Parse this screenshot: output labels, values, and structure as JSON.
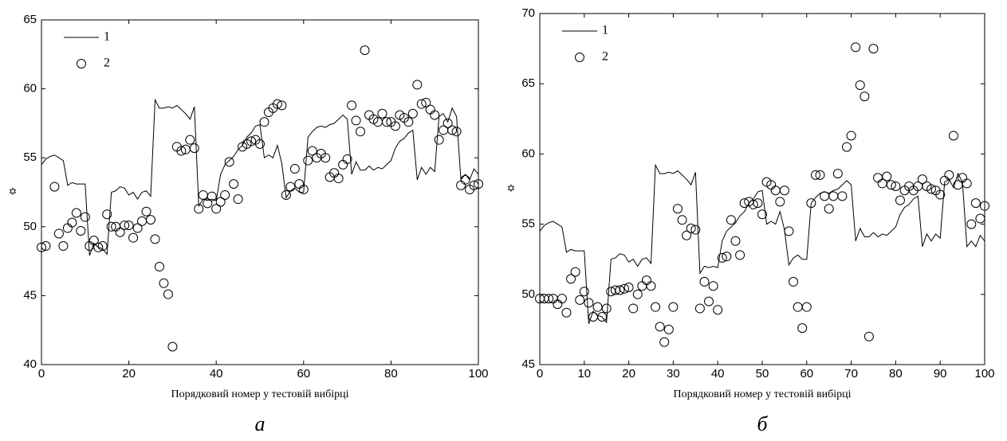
{
  "chart_data": [
    {
      "type": "line",
      "caption": "а",
      "xlabel": "Порядковий номер у тестовій вибірці",
      "ylabel": "✡",
      "legend": "upper left",
      "xlim": [
        0,
        100
      ],
      "ylim": [
        40,
        65
      ],
      "xticks": [
        0,
        20,
        40,
        60,
        80,
        100
      ],
      "yticks": [
        40,
        45,
        50,
        55,
        60,
        65
      ],
      "x": [
        0,
        1,
        2,
        3,
        4,
        5,
        6,
        7,
        8,
        9,
        10,
        11,
        12,
        13,
        14,
        15,
        16,
        17,
        18,
        19,
        20,
        21,
        22,
        23,
        24,
        25,
        26,
        27,
        28,
        29,
        30,
        31,
        32,
        33,
        34,
        35,
        36,
        37,
        38,
        39,
        40,
        41,
        42,
        43,
        44,
        45,
        46,
        47,
        48,
        49,
        50,
        51,
        52,
        53,
        54,
        55,
        56,
        57,
        58,
        59,
        60,
        61,
        62,
        63,
        64,
        65,
        66,
        67,
        68,
        69,
        70,
        71,
        72,
        73,
        74,
        75,
        76,
        77,
        78,
        79,
        80,
        81,
        82,
        83,
        84,
        85,
        86,
        87,
        88,
        89,
        90,
        91,
        92,
        93,
        94,
        95,
        96,
        97,
        98,
        99,
        100
      ],
      "series": [
        {
          "name": "1",
          "color": "#000000",
          "marker": "line",
          "values": [
            54.5,
            54.9,
            55.1,
            55.2,
            55.0,
            54.8,
            53.0,
            53.2,
            53.1,
            53.1,
            53.1,
            47.9,
            48.8,
            48.5,
            48.4,
            48.0,
            52.5,
            52.6,
            52.9,
            52.8,
            52.3,
            52.5,
            52.0,
            52.5,
            52.6,
            52.2,
            59.2,
            58.6,
            58.6,
            58.7,
            58.6,
            58.8,
            58.5,
            58.2,
            57.8,
            58.7,
            51.5,
            52.0,
            51.9,
            52.0,
            51.9,
            53.8,
            54.5,
            54.8,
            55.1,
            55.6,
            55.9,
            56.5,
            56.8,
            57.3,
            57.4,
            55.0,
            55.2,
            55.0,
            55.9,
            54.6,
            52.1,
            52.6,
            52.8,
            52.5,
            52.5,
            56.5,
            56.9,
            57.2,
            57.3,
            57.2,
            57.4,
            57.5,
            57.8,
            58.1,
            57.8,
            53.8,
            54.7,
            54.1,
            54.1,
            54.4,
            54.1,
            54.3,
            54.2,
            54.5,
            54.8,
            55.7,
            56.2,
            56.4,
            56.8,
            57.0,
            53.4,
            54.3,
            53.8,
            54.3,
            54.0,
            58.0,
            58.2,
            57.6,
            58.6,
            58.0,
            53.4,
            53.8,
            53.4,
            54.2,
            53.8
          ]
        },
        {
          "name": "2",
          "color": "#000000",
          "marker": "circle",
          "values": [
            48.5,
            48.6,
            null,
            52.9,
            49.5,
            48.6,
            49.9,
            50.3,
            51.0,
            49.7,
            50.7,
            48.6,
            49.0,
            48.5,
            48.6,
            50.9,
            50.0,
            50.0,
            49.6,
            50.1,
            50.1,
            49.2,
            49.9,
            50.4,
            51.1,
            50.5,
            49.1,
            47.1,
            45.9,
            45.1,
            41.3,
            55.8,
            55.5,
            55.6,
            56.3,
            55.7,
            51.3,
            52.3,
            51.7,
            52.2,
            51.3,
            51.8,
            52.3,
            54.7,
            53.1,
            52.0,
            55.8,
            56.0,
            56.2,
            56.3,
            56.0,
            57.6,
            58.3,
            58.6,
            58.9,
            58.8,
            52.3,
            52.9,
            54.2,
            53.1,
            52.7,
            54.8,
            55.5,
            55.0,
            55.3,
            55.0,
            53.6,
            53.9,
            53.5,
            54.5,
            54.9,
            58.8,
            57.7,
            56.9,
            62.8,
            58.1,
            57.8,
            57.6,
            58.2,
            57.6,
            57.6,
            57.3,
            58.1,
            57.9,
            57.6,
            58.2,
            60.3,
            58.9,
            59.0,
            58.5,
            58.1,
            56.3,
            57.0,
            57.5,
            57.0,
            56.9,
            53.0,
            53.4,
            52.7,
            53.0,
            53.1
          ]
        }
      ]
    },
    {
      "type": "line",
      "caption": "б",
      "xlabel": "Порядковий номер у тестовій вибірці",
      "ylabel": "✡",
      "legend": "upper left",
      "xlim": [
        0,
        100
      ],
      "ylim": [
        45,
        70
      ],
      "xticks": [
        0,
        10,
        20,
        30,
        40,
        50,
        60,
        70,
        80,
        90,
        100
      ],
      "yticks": [
        45,
        50,
        55,
        60,
        65,
        70
      ],
      "x": [
        0,
        1,
        2,
        3,
        4,
        5,
        6,
        7,
        8,
        9,
        10,
        11,
        12,
        13,
        14,
        15,
        16,
        17,
        18,
        19,
        20,
        21,
        22,
        23,
        24,
        25,
        26,
        27,
        28,
        29,
        30,
        31,
        32,
        33,
        34,
        35,
        36,
        37,
        38,
        39,
        40,
        41,
        42,
        43,
        44,
        45,
        46,
        47,
        48,
        49,
        50,
        51,
        52,
        53,
        54,
        55,
        56,
        57,
        58,
        59,
        60,
        61,
        62,
        63,
        64,
        65,
        66,
        67,
        68,
        69,
        70,
        71,
        72,
        73,
        74,
        75,
        76,
        77,
        78,
        79,
        80,
        81,
        82,
        83,
        84,
        85,
        86,
        87,
        88,
        89,
        90,
        91,
        92,
        93,
        94,
        95,
        96,
        97,
        98,
        99,
        100
      ],
      "series": [
        {
          "name": "1",
          "color": "#000000",
          "marker": "line",
          "values": [
            54.5,
            54.9,
            55.1,
            55.2,
            55.0,
            54.8,
            53.0,
            53.2,
            53.1,
            53.1,
            53.1,
            47.9,
            48.8,
            48.5,
            48.4,
            48.0,
            52.5,
            52.6,
            52.9,
            52.8,
            52.3,
            52.5,
            52.0,
            52.5,
            52.6,
            52.2,
            59.2,
            58.6,
            58.6,
            58.7,
            58.6,
            58.8,
            58.5,
            58.2,
            57.8,
            58.7,
            51.5,
            52.0,
            51.9,
            52.0,
            51.9,
            53.8,
            54.5,
            54.8,
            55.1,
            55.6,
            55.9,
            56.5,
            56.8,
            57.3,
            57.4,
            55.0,
            55.2,
            55.0,
            55.9,
            54.6,
            52.1,
            52.6,
            52.8,
            52.5,
            52.5,
            56.5,
            56.9,
            57.2,
            57.3,
            57.2,
            57.4,
            57.5,
            57.8,
            58.1,
            57.8,
            53.8,
            54.7,
            54.1,
            54.1,
            54.4,
            54.1,
            54.3,
            54.2,
            54.5,
            54.8,
            55.7,
            56.2,
            56.4,
            56.8,
            57.0,
            53.4,
            54.3,
            53.8,
            54.3,
            54.0,
            58.0,
            58.2,
            57.6,
            58.6,
            58.0,
            53.4,
            53.8,
            53.4,
            54.2,
            53.8
          ]
        },
        {
          "name": "2",
          "color": "#000000",
          "marker": "circle",
          "values": [
            49.7,
            49.7,
            49.7,
            49.7,
            49.3,
            49.7,
            48.7,
            51.1,
            51.6,
            49.6,
            50.2,
            49.4,
            48.4,
            49.1,
            48.4,
            49.0,
            50.2,
            50.3,
            50.3,
            50.4,
            50.5,
            49.0,
            50.0,
            50.6,
            51.0,
            50.6,
            49.1,
            47.7,
            46.6,
            47.5,
            49.1,
            56.1,
            55.3,
            54.2,
            54.7,
            54.6,
            49.0,
            50.9,
            49.5,
            50.6,
            48.9,
            52.6,
            52.7,
            55.3,
            53.8,
            52.8,
            56.5,
            56.6,
            56.4,
            56.5,
            55.7,
            58.0,
            57.8,
            57.4,
            56.6,
            57.4,
            54.5,
            50.9,
            49.1,
            47.6,
            49.1,
            56.5,
            58.5,
            58.5,
            57.0,
            56.1,
            57.0,
            58.6,
            57.0,
            60.5,
            61.3,
            67.6,
            64.9,
            64.1,
            47.0,
            67.5,
            58.3,
            57.9,
            58.4,
            57.8,
            57.7,
            56.7,
            57.4,
            57.7,
            57.4,
            57.7,
            58.2,
            57.7,
            57.5,
            57.4,
            57.1,
            58.1,
            58.5,
            61.3,
            57.8,
            58.3,
            57.9,
            55.0,
            56.5,
            55.4,
            56.3
          ]
        }
      ]
    }
  ]
}
